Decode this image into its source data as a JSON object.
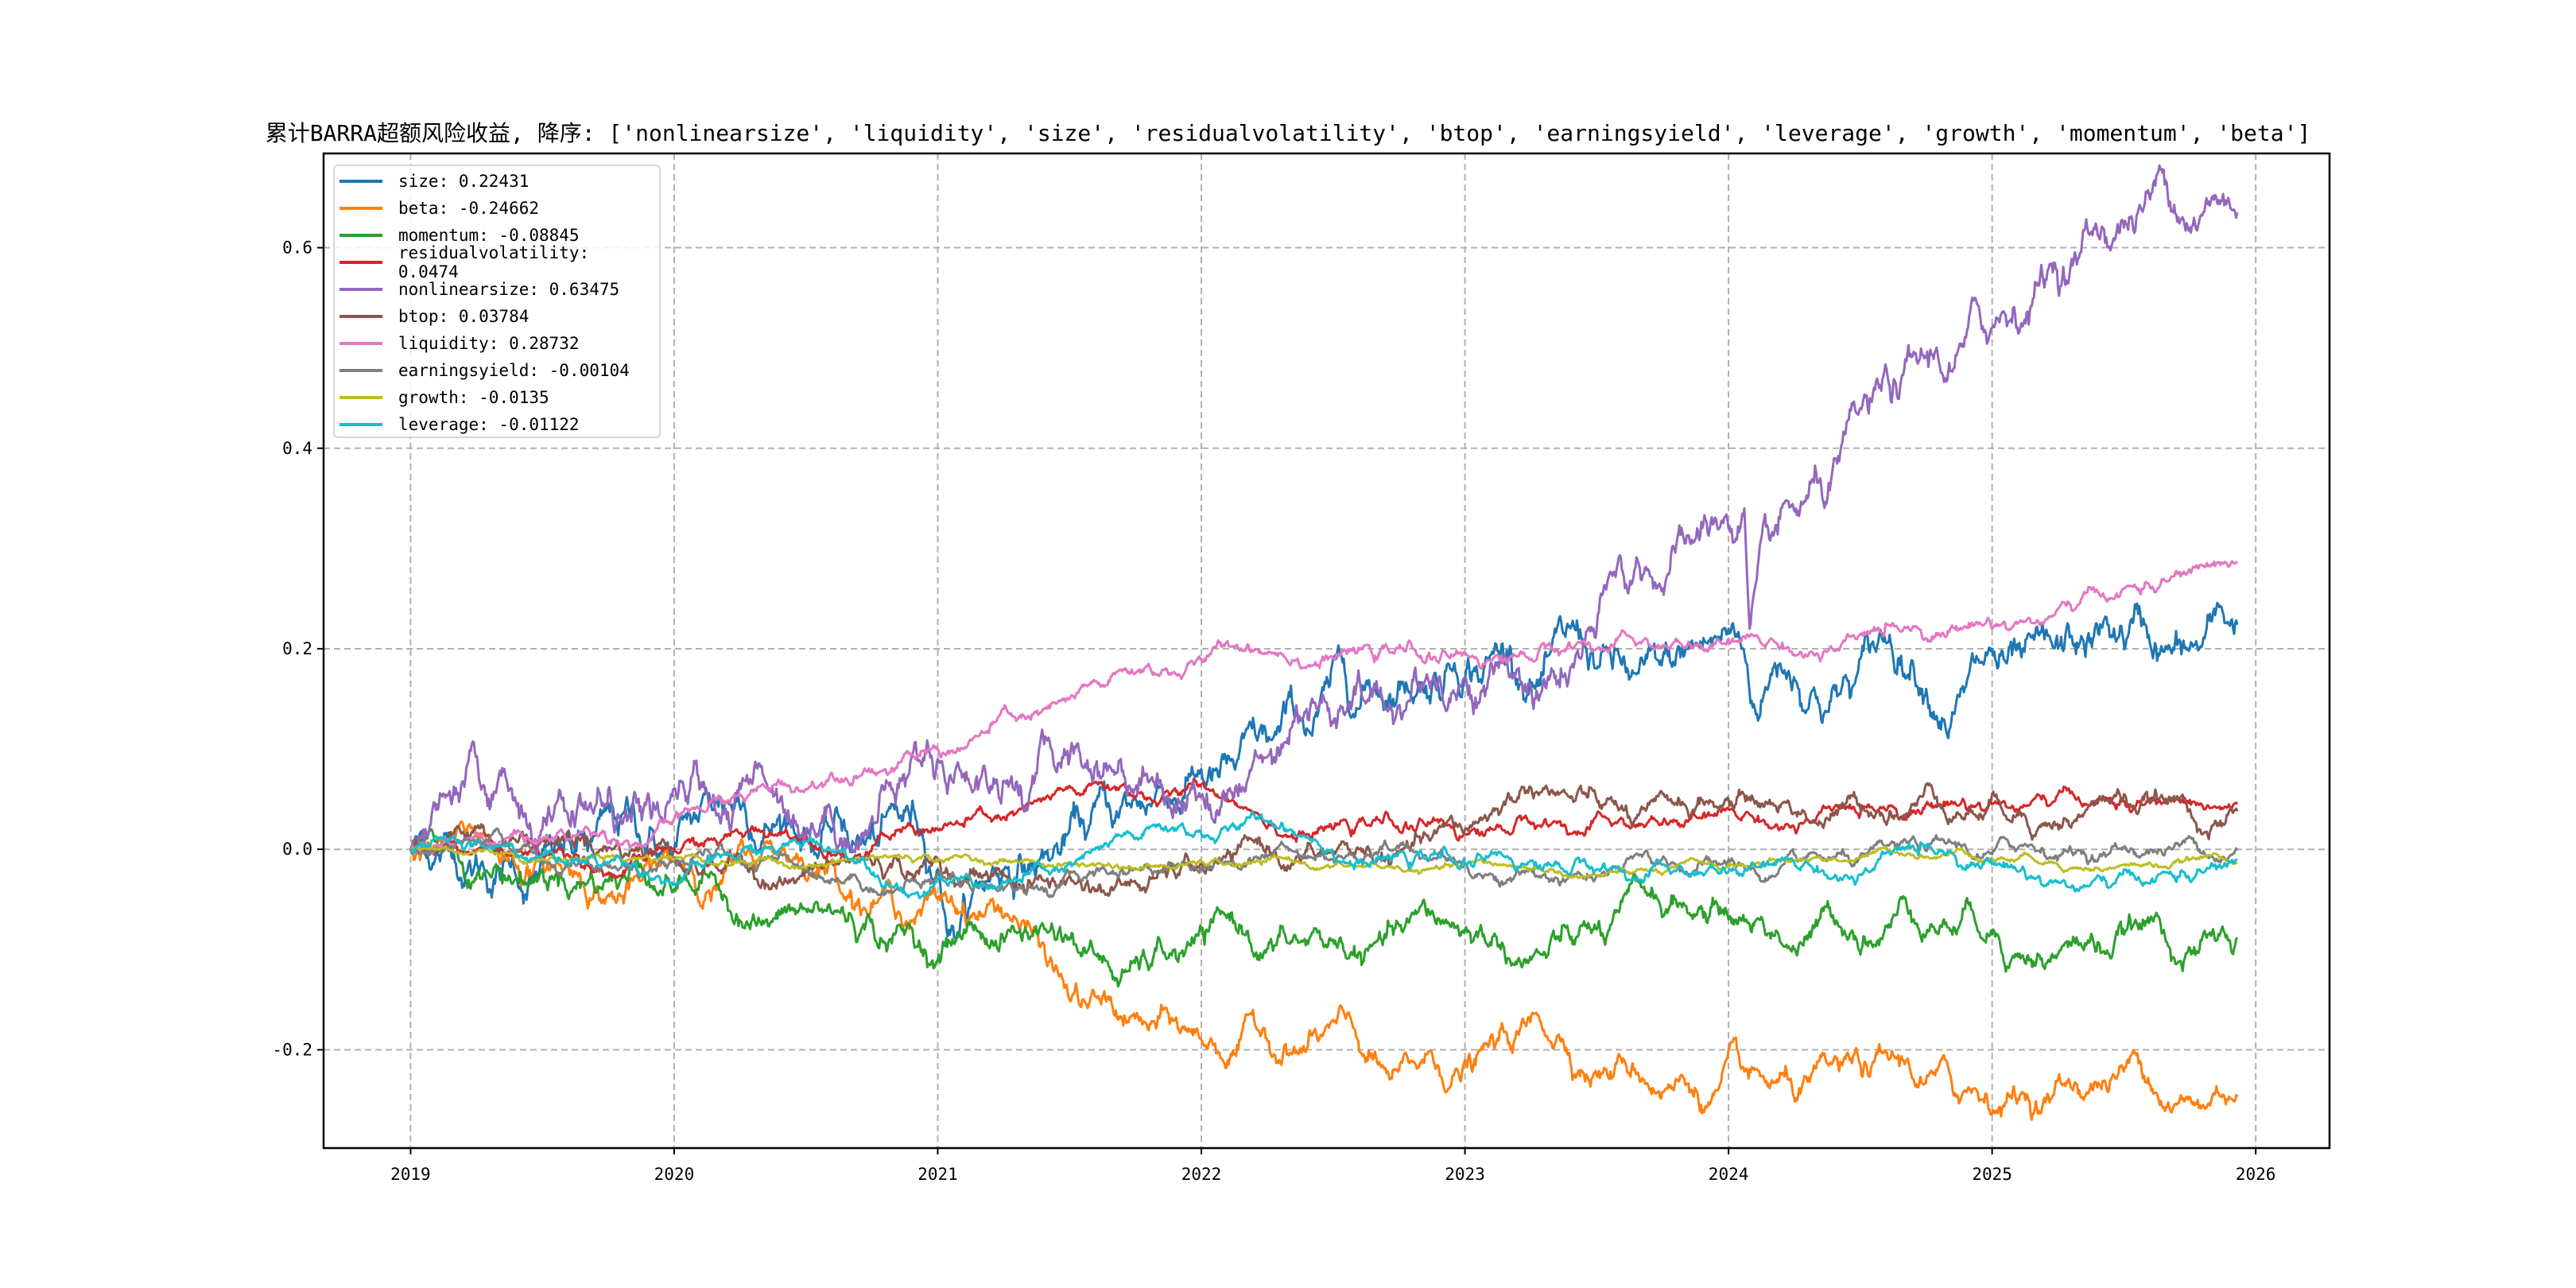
{
  "chart_data": {
    "type": "line",
    "title": "累计BARRA超额风险收益,  降序: ['nonlinearsize', 'liquidity', 'size', 'residualvolatility', 'btop', 'earningsyield', 'leverage', 'growth', 'momentum', 'beta']",
    "xlabel": "",
    "ylabel": "",
    "xlim": [
      2018.67,
      2026.28
    ],
    "ylim": [
      -0.298,
      0.694
    ],
    "x_ticks": [
      "2019",
      "2020",
      "2021",
      "2022",
      "2023",
      "2024",
      "2025",
      "2026"
    ],
    "y_ticks": [
      "-0.2",
      "0.0",
      "0.2",
      "0.4",
      "0.6"
    ],
    "y_tick_values": [
      -0.2,
      0,
      0.2,
      0.4,
      0.6
    ],
    "grid": true,
    "legend_position": "top-left",
    "series": [
      {
        "name": "size",
        "label": "size: 0.22431",
        "color": "#1f77b4",
        "noise": 0.006,
        "points": [
          [
            2019,
            0
          ],
          [
            2019.5,
            0
          ],
          [
            2020,
            0
          ],
          [
            2020.5,
            0.02
          ],
          [
            2021,
            -0.02
          ],
          [
            2021.05,
            -0.08
          ],
          [
            2021.3,
            -0.03
          ],
          [
            2021.5,
            0.02
          ],
          [
            2021.75,
            0.05
          ],
          [
            2022,
            0.08
          ],
          [
            2022.3,
            0.12
          ],
          [
            2022.6,
            0.14
          ],
          [
            2022.9,
            0.16
          ],
          [
            2023,
            0.17
          ],
          [
            2023.25,
            0.16
          ],
          [
            2023.5,
            0.18
          ],
          [
            2023.75,
            0.19
          ],
          [
            2024,
            0.22
          ],
          [
            2024.05,
            0.2
          ],
          [
            2024.1,
            0.14
          ],
          [
            2024.2,
            0.18
          ],
          [
            2024.5,
            0.19
          ],
          [
            2024.75,
            0.16
          ],
          [
            2025,
            0.2
          ],
          [
            2025.25,
            0.2
          ],
          [
            2025.55,
            0.245
          ],
          [
            2025.75,
            0.2
          ],
          [
            2025.93,
            0.224
          ]
        ]
      },
      {
        "name": "beta",
        "label": "beta: -0.24662",
        "color": "#ff7f0e",
        "noise": 0.004,
        "points": [
          [
            2019,
            0
          ],
          [
            2019.5,
            -0.01
          ],
          [
            2020,
            -0.01
          ],
          [
            2020.5,
            -0.03
          ],
          [
            2021,
            -0.05
          ],
          [
            2021.3,
            -0.07
          ],
          [
            2021.5,
            -0.15
          ],
          [
            2021.7,
            -0.17
          ],
          [
            2022,
            -0.19
          ],
          [
            2022.2,
            -0.17
          ],
          [
            2022.5,
            -0.17
          ],
          [
            2022.75,
            -0.22
          ],
          [
            2023,
            -0.21
          ],
          [
            2024,
            -0.2
          ],
          [
            2024.1,
            -0.22
          ],
          [
            2024.5,
            -0.215
          ],
          [
            2024.8,
            -0.215
          ],
          [
            2024.85,
            -0.24
          ],
          [
            2025.25,
            -0.23
          ],
          [
            2025.6,
            -0.235
          ],
          [
            2025.8,
            -0.255
          ],
          [
            2025.93,
            -0.247
          ]
        ]
      },
      {
        "name": "momentum",
        "label": "momentum: -0.08845",
        "color": "#2ca02c",
        "noise": 0.004,
        "points": [
          [
            2019,
            0
          ],
          [
            2019.5,
            -0.02
          ],
          [
            2020,
            -0.04
          ],
          [
            2020.5,
            -0.06
          ],
          [
            2020.75,
            -0.07
          ],
          [
            2021,
            -0.11
          ],
          [
            2021.1,
            -0.08
          ],
          [
            2021.5,
            -0.09
          ],
          [
            2021.7,
            -0.12
          ],
          [
            2022,
            -0.08
          ],
          [
            2022.5,
            -0.09
          ],
          [
            2023,
            -0.08
          ],
          [
            2023.5,
            -0.08
          ],
          [
            2024,
            -0.07
          ],
          [
            2024.3,
            -0.09
          ],
          [
            2024.5,
            -0.105
          ],
          [
            2024.75,
            -0.085
          ],
          [
            2025,
            -0.085
          ],
          [
            2025.5,
            -0.085
          ],
          [
            2025.93,
            -0.088
          ]
        ]
      },
      {
        "name": "residualvolatility",
        "label": "residualvolatility: 0.0474",
        "color": "#d62728",
        "noise": 0.002,
        "points": [
          [
            2019,
            0
          ],
          [
            2020,
            0
          ],
          [
            2020.3,
            0.02
          ],
          [
            2021,
            0.02
          ],
          [
            2022.5,
            0.02
          ],
          [
            2023,
            0.015
          ],
          [
            2023.25,
            0.025
          ],
          [
            2023.5,
            0.035
          ],
          [
            2024,
            0.04
          ],
          [
            2024.5,
            0.035
          ],
          [
            2024.75,
            0.045
          ],
          [
            2025,
            0.045
          ],
          [
            2025.93,
            0.047
          ]
        ]
      },
      {
        "name": "nonlinearsize",
        "label": "nonlinearsize: 0.63475",
        "color": "#9467bd",
        "noise": 0.006,
        "points": [
          [
            2019,
            0
          ],
          [
            2019.5,
            0.02
          ],
          [
            2019.75,
            0.06
          ],
          [
            2020,
            0.06
          ],
          [
            2020.2,
            0.03
          ],
          [
            2020.5,
            0.02
          ],
          [
            2020.65,
            0.01
          ],
          [
            2020.8,
            0.06
          ],
          [
            2021,
            0.09
          ],
          [
            2021.5,
            0.09
          ],
          [
            2021.75,
            0.06
          ],
          [
            2021.9,
            0.04
          ],
          [
            2022.2,
            0.09
          ],
          [
            2022.4,
            0.14
          ],
          [
            2022.7,
            0.14
          ],
          [
            2023,
            0.17
          ],
          [
            2023.2,
            0.18
          ],
          [
            2023.3,
            0.17
          ],
          [
            2023.5,
            0.22
          ],
          [
            2023.75,
            0.26
          ],
          [
            2024,
            0.32
          ],
          [
            2024.06,
            0.34
          ],
          [
            2024.08,
            0.22
          ],
          [
            2024.15,
            0.32
          ],
          [
            2024.3,
            0.35
          ],
          [
            2024.5,
            0.44
          ],
          [
            2024.75,
            0.49
          ],
          [
            2025,
            0.52
          ],
          [
            2025.25,
            0.56
          ],
          [
            2025.5,
            0.62
          ],
          [
            2025.75,
            0.62
          ],
          [
            2025.9,
            0.645
          ],
          [
            2025.93,
            0.635
          ]
        ]
      },
      {
        "name": "btop",
        "label": "btop: 0.03784",
        "color": "#8c564b",
        "noise": 0.003,
        "points": [
          [
            2019,
            0
          ],
          [
            2019.3,
            0.01
          ],
          [
            2020,
            -0.01
          ],
          [
            2021,
            -0.01
          ],
          [
            2022,
            -0.015
          ],
          [
            2022.6,
            0
          ],
          [
            2023,
            0.02
          ],
          [
            2023.3,
            0.06
          ],
          [
            2023.75,
            0.055
          ],
          [
            2024,
            0.05
          ],
          [
            2024.5,
            0.04
          ],
          [
            2024.75,
            0.065
          ],
          [
            2025,
            0.055
          ],
          [
            2025.5,
            0.055
          ],
          [
            2025.75,
            0.04
          ],
          [
            2025.93,
            0.038
          ]
        ]
      },
      {
        "name": "liquidity",
        "label": "liquidity: 0.28732",
        "color": "#e377c2",
        "noise": 0.002,
        "points": [
          [
            2019,
            0
          ],
          [
            2019.5,
            0.01
          ],
          [
            2020,
            0.03
          ],
          [
            2020.5,
            0.06
          ],
          [
            2020.75,
            0.08
          ],
          [
            2021,
            0.1
          ],
          [
            2021.25,
            0.14
          ],
          [
            2021.5,
            0.15
          ],
          [
            2022,
            0.19
          ],
          [
            2022.25,
            0.195
          ],
          [
            2022.5,
            0.19
          ],
          [
            2023,
            0.195
          ],
          [
            2023.5,
            0.2
          ],
          [
            2024,
            0.21
          ],
          [
            2024.5,
            0.215
          ],
          [
            2025,
            0.22
          ],
          [
            2025.25,
            0.24
          ],
          [
            2025.5,
            0.26
          ],
          [
            2025.93,
            0.287
          ]
        ]
      },
      {
        "name": "earningsyield",
        "label": "earningsyield: -0.00104",
        "color": "#7f7f7f",
        "noise": 0.002,
        "points": [
          [
            2019,
            0
          ],
          [
            2019.5,
            -0.01
          ],
          [
            2020,
            -0.01
          ],
          [
            2020.5,
            -0.02
          ],
          [
            2021,
            -0.025
          ],
          [
            2021.5,
            -0.025
          ],
          [
            2022,
            -0.02
          ],
          [
            2022.5,
            -0.01
          ],
          [
            2023,
            -0.015
          ],
          [
            2024,
            -0.01
          ],
          [
            2025,
            -0.005
          ],
          [
            2025.93,
            -0.001
          ]
        ]
      },
      {
        "name": "growth",
        "label": "growth: -0.0135",
        "color": "#bcbd22",
        "noise": 0.001,
        "points": [
          [
            2019,
            0
          ],
          [
            2019.5,
            -0.01
          ],
          [
            2020,
            -0.01
          ],
          [
            2021,
            -0.01
          ],
          [
            2022,
            -0.012
          ],
          [
            2023,
            -0.015
          ],
          [
            2024,
            -0.015
          ],
          [
            2025,
            -0.01
          ],
          [
            2025.93,
            -0.0135
          ]
        ]
      },
      {
        "name": "leverage",
        "label": "leverage: -0.01122",
        "color": "#17becf",
        "noise": 0.002,
        "points": [
          [
            2019,
            0
          ],
          [
            2019.5,
            -0.005
          ],
          [
            2022.5,
            -0.005
          ],
          [
            2023,
            -0.015
          ],
          [
            2023.5,
            -0.02
          ],
          [
            2024.5,
            -0.025
          ],
          [
            2025,
            -0.015
          ],
          [
            2025.5,
            -0.02
          ],
          [
            2025.93,
            -0.011
          ]
        ]
      }
    ]
  }
}
